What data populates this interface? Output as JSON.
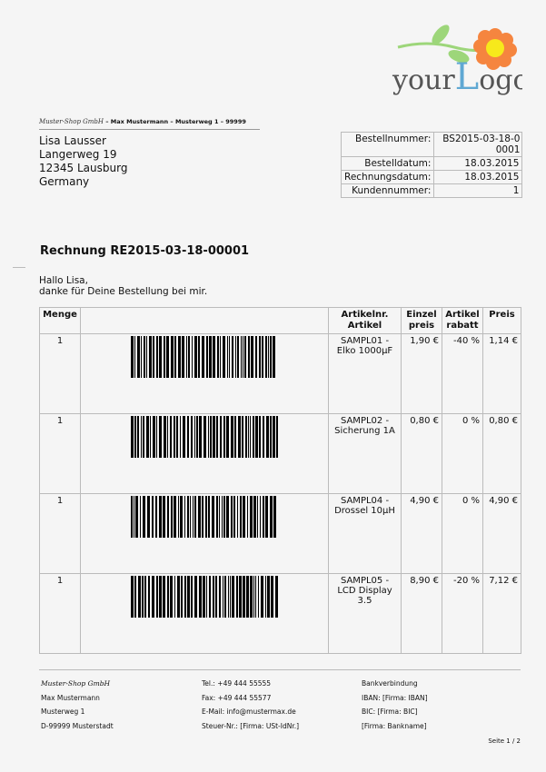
{
  "logo": {
    "text_your": "your",
    "text_L": "L",
    "text_ogo": "ogo",
    "colors": {
      "petal": "#f5853f",
      "center": "#f7e91b",
      "leaf": "#9dd67a",
      "text": "#555555",
      "L": "#5fa8d3"
    }
  },
  "sender": {
    "company": "Muster-Shop GmbH",
    "line": " – Max Mustermann – Musterweg 1 – 99999"
  },
  "recipient": [
    "Lisa Lausser",
    "Langerweg 19",
    "12345 Lausburg",
    "Germany"
  ],
  "info": [
    {
      "label": "Bestellnummer:",
      "value": "BS2015-03-18-00001"
    },
    {
      "label": "Bestelldatum:",
      "value": "18.03.2015"
    },
    {
      "label": "Rechnungsdatum:",
      "value": "18.03.2015"
    },
    {
      "label": "Kundennummer:",
      "value": "1"
    }
  ],
  "title": "Rechnung RE2015-03-18-00001",
  "greeting": [
    "Hallo Lisa,",
    "danke für Deine Bestellung bei mir."
  ],
  "table": {
    "headers": {
      "menge": "Menge",
      "barcode": "",
      "artikel_1": "Artikelnr.",
      "artikel_2": "Artikel",
      "einzel_1": "Einzel",
      "einzel_2": "preis",
      "rabatt_1": "Artikel",
      "rabatt_2": "rabatt",
      "preis": "Preis"
    },
    "rows": [
      {
        "menge": "1",
        "artikel": "SAMPL01 - Elko 1000µF",
        "einzel": "1,90 €",
        "rabatt": "-40 %",
        "preis": "1,14 €"
      },
      {
        "menge": "1",
        "artikel": "SAMPL02 - Sicherung 1A",
        "einzel": "0,80 €",
        "rabatt": "0 %",
        "preis": "0,80 €"
      },
      {
        "menge": "1",
        "artikel": "SAMPL04 - Drossel 10µH",
        "einzel": "4,90 €",
        "rabatt": "0 %",
        "preis": "4,90 €"
      },
      {
        "menge": "1",
        "artikel": "SAMPL05 - LCD Display 3.5",
        "einzel": "8,90 €",
        "rabatt": "-20 %",
        "preis": "7,12 €"
      }
    ]
  },
  "footer": {
    "col1": [
      "Muster-Shop GmbH",
      "Max Mustermann",
      "Musterweg 1",
      "D-99999 Musterstadt"
    ],
    "col2": [
      "Tel.: +49 444 55555",
      "Fax: +49 444 55577",
      "E-Mail: info@mustermax.de",
      "Steuer-Nr.: [Firma: USt-IdNr.]"
    ],
    "col3": [
      "Bankverbindung",
      "IBAN: [Firma: IBAN]",
      "BIC: [Firma: BIC]",
      "[Firma: Bankname]"
    ],
    "page": "Seite 1 / 2"
  }
}
